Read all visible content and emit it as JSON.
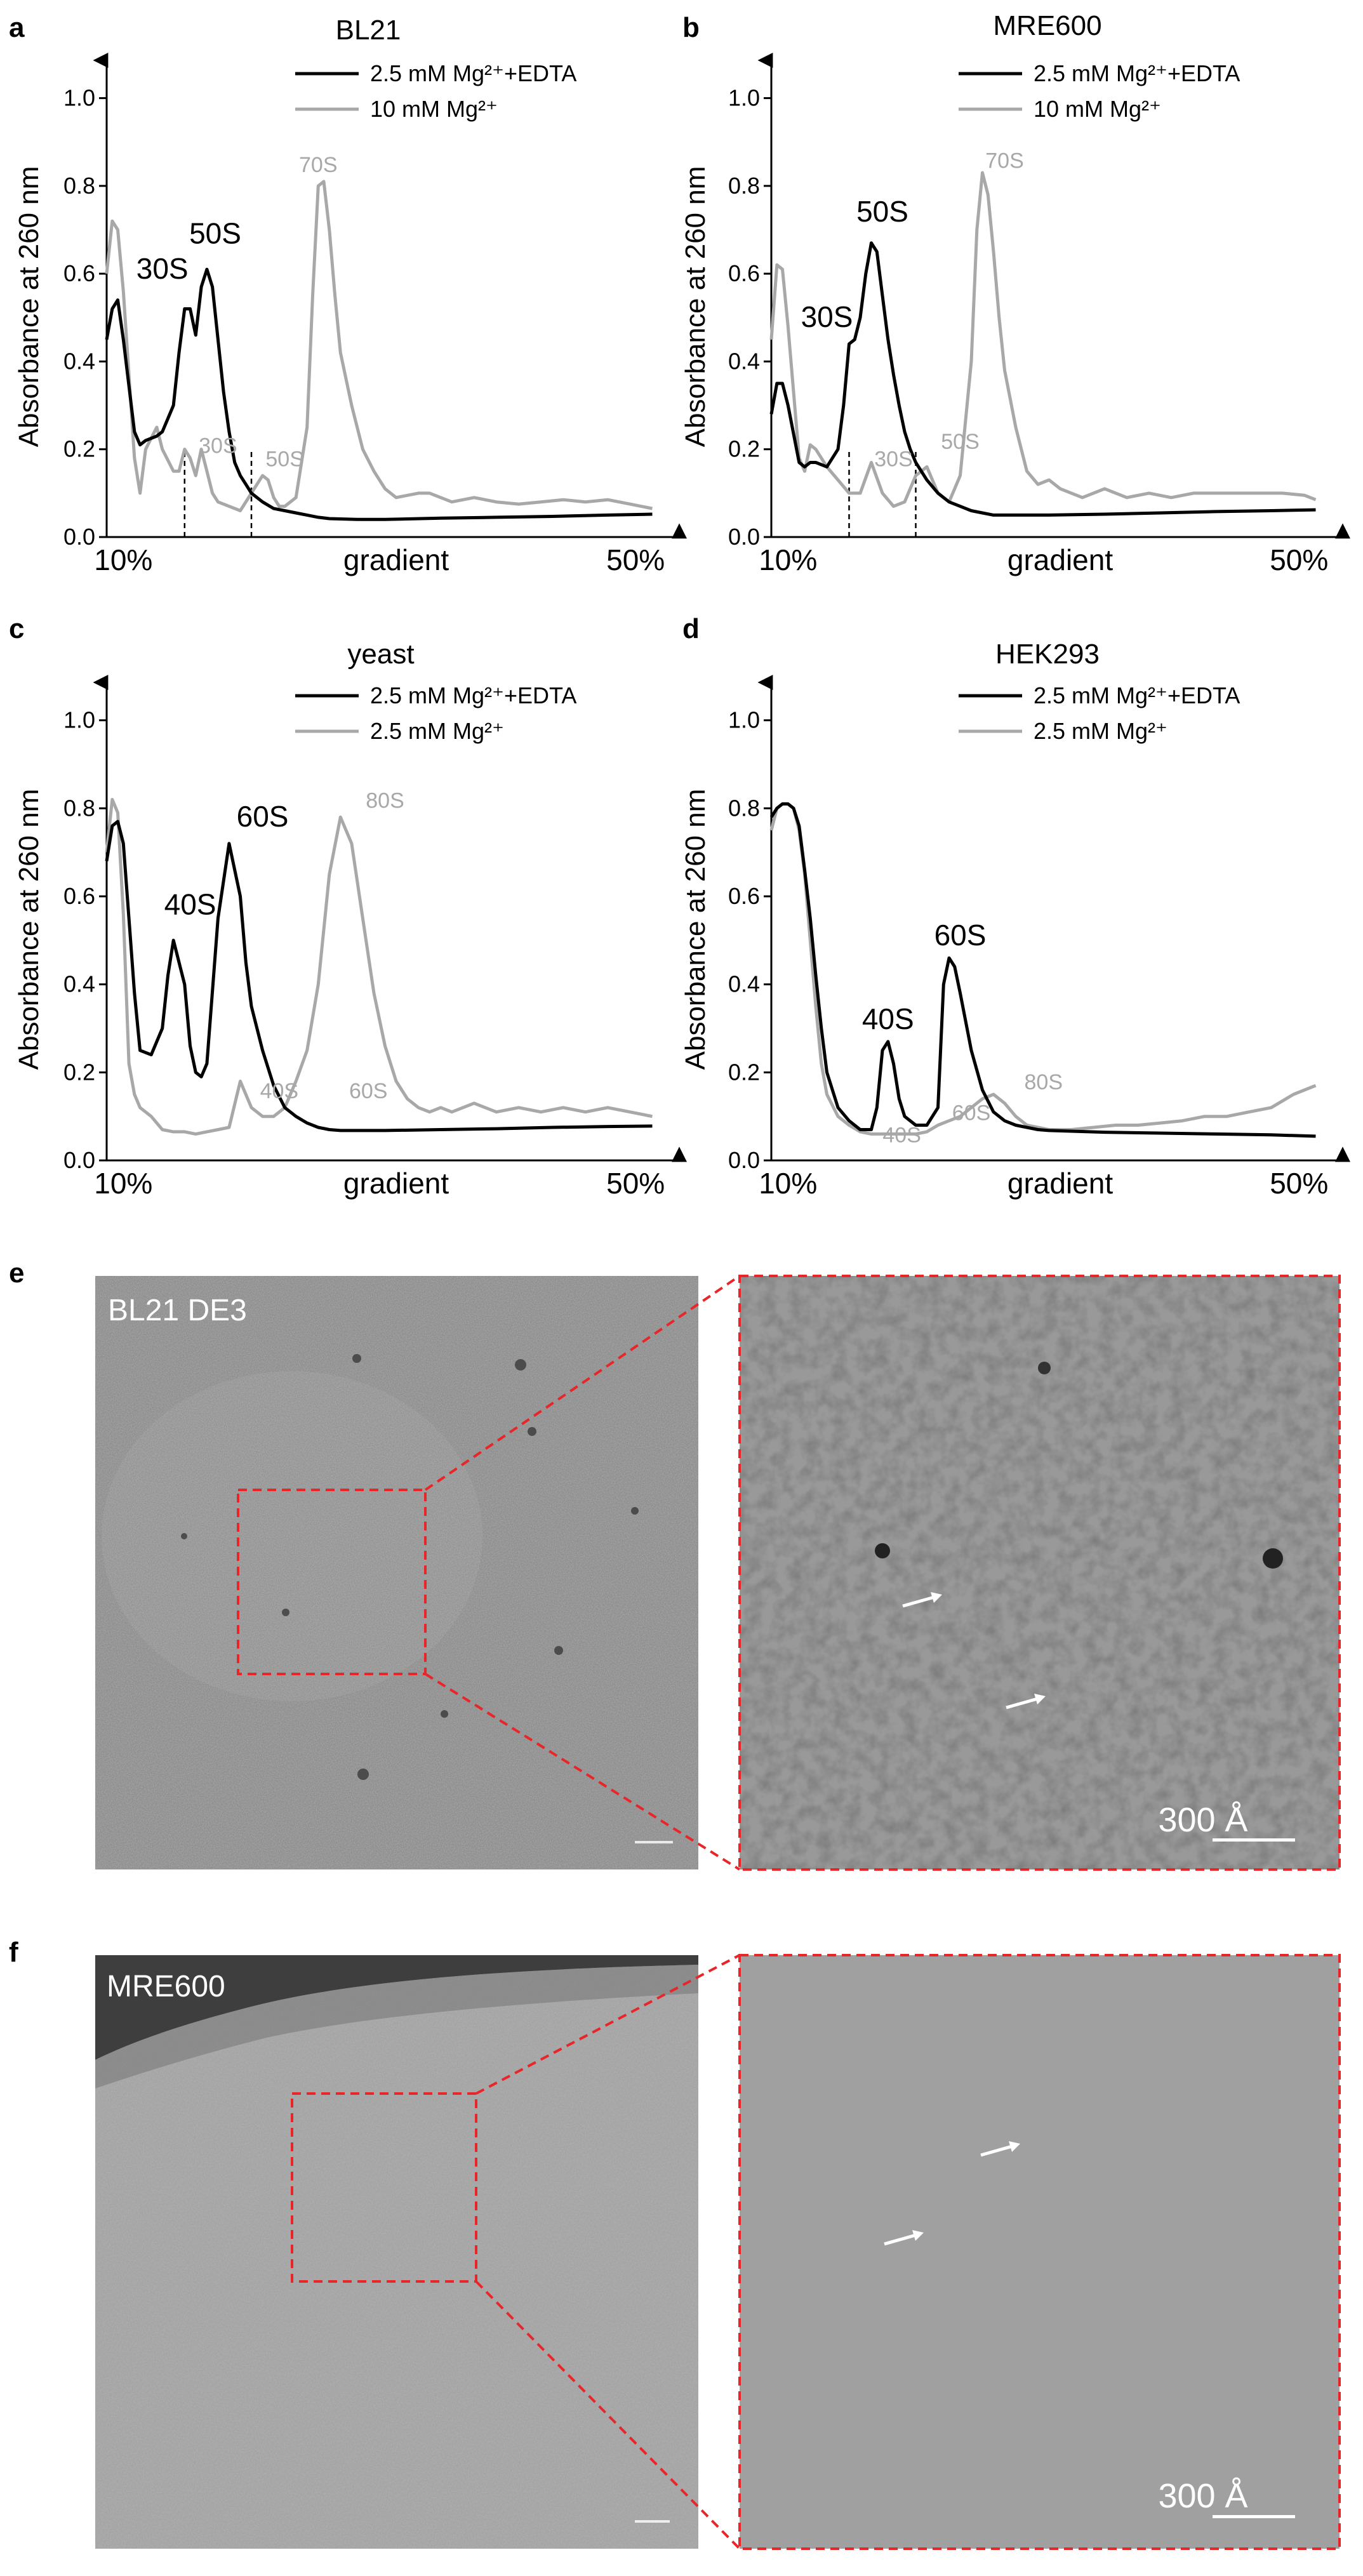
{
  "colors": {
    "series_black": "#000000",
    "series_gray": "#a8a8a8",
    "zoom_box": "#e8262a",
    "arrow": "#ffffff"
  },
  "chart_data": [
    {
      "panel": "a",
      "type": "line",
      "title": "BL21",
      "xlabel": "gradient",
      "x_ticks": [
        "10%",
        "50%"
      ],
      "ylabel": "Absorbance at 260 nm",
      "ylim": [
        0,
        1.05
      ],
      "yticks": [
        0.0,
        0.2,
        0.4,
        0.6,
        0.8,
        1.0
      ],
      "xlim": [
        0,
        100
      ],
      "legend_position": "top-right",
      "series": [
        {
          "name": "2.5 mM Mg²⁺+EDTA",
          "color": "#000000",
          "x": [
            0,
            1,
            2,
            3,
            5,
            6,
            7,
            9,
            10,
            12,
            13,
            14,
            15,
            16,
            17,
            18,
            19,
            20,
            21,
            22,
            23,
            24,
            25,
            26,
            28,
            30,
            32,
            34,
            36,
            38,
            40,
            45,
            50,
            60,
            70,
            80,
            90,
            98
          ],
          "y": [
            0.45,
            0.52,
            0.54,
            0.45,
            0.24,
            0.21,
            0.22,
            0.23,
            0.24,
            0.3,
            0.42,
            0.52,
            0.52,
            0.46,
            0.57,
            0.61,
            0.57,
            0.45,
            0.33,
            0.24,
            0.17,
            0.14,
            0.12,
            0.1,
            0.08,
            0.065,
            0.06,
            0.055,
            0.05,
            0.045,
            0.042,
            0.04,
            0.04,
            0.043,
            0.045,
            0.047,
            0.05,
            0.052
          ]
        },
        {
          "name": "10 mM Mg²⁺",
          "color": "#a8a8a8",
          "x": [
            0,
            1,
            2,
            3,
            5,
            6,
            7,
            9,
            10,
            12,
            13,
            14,
            15,
            16,
            17,
            18,
            19,
            20,
            22,
            24,
            26,
            28,
            29,
            30,
            31,
            32,
            34,
            36,
            37,
            38,
            39,
            40,
            41,
            42,
            44,
            46,
            48,
            50,
            52,
            56,
            58,
            62,
            66,
            70,
            74,
            78,
            82,
            86,
            90,
            94,
            98
          ],
          "y": [
            0.6,
            0.72,
            0.7,
            0.56,
            0.18,
            0.1,
            0.2,
            0.25,
            0.2,
            0.15,
            0.15,
            0.2,
            0.18,
            0.14,
            0.2,
            0.15,
            0.1,
            0.08,
            0.07,
            0.06,
            0.1,
            0.14,
            0.13,
            0.09,
            0.07,
            0.07,
            0.09,
            0.25,
            0.55,
            0.8,
            0.81,
            0.7,
            0.55,
            0.42,
            0.3,
            0.2,
            0.15,
            0.11,
            0.09,
            0.1,
            0.1,
            0.08,
            0.09,
            0.08,
            0.075,
            0.08,
            0.085,
            0.08,
            0.085,
            0.075,
            0.065
          ]
        }
      ],
      "peak_labels_black": [
        "30S",
        "50S"
      ],
      "peak_labels_gray": [
        "30S",
        "50S",
        "70S"
      ],
      "fraction_markers": "dashed"
    },
    {
      "panel": "b",
      "type": "line",
      "title": "MRE600",
      "xlabel": "gradient",
      "x_ticks": [
        "10%",
        "50%"
      ],
      "ylabel": "Absorbance at 260 nm",
      "ylim": [
        0,
        1.05
      ],
      "yticks": [
        0.0,
        0.2,
        0.4,
        0.6,
        0.8,
        1.0
      ],
      "xlim": [
        0,
        100
      ],
      "legend_position": "top-right",
      "series": [
        {
          "name": "2.5 mM Mg²⁺+EDTA",
          "color": "#000000",
          "x": [
            0,
            1,
            2,
            3,
            5,
            6,
            7,
            8,
            10,
            12,
            13,
            14,
            15,
            16,
            17,
            18,
            19,
            20,
            21,
            22,
            23,
            24,
            25,
            26,
            28,
            30,
            32,
            34,
            36,
            38,
            40,
            45,
            50,
            60,
            70,
            80,
            90,
            98
          ],
          "y": [
            0.28,
            0.35,
            0.35,
            0.3,
            0.17,
            0.16,
            0.17,
            0.17,
            0.16,
            0.2,
            0.3,
            0.44,
            0.45,
            0.5,
            0.6,
            0.67,
            0.65,
            0.55,
            0.45,
            0.37,
            0.3,
            0.24,
            0.2,
            0.17,
            0.13,
            0.1,
            0.08,
            0.07,
            0.06,
            0.055,
            0.05,
            0.05,
            0.05,
            0.052,
            0.055,
            0.058,
            0.06,
            0.062
          ]
        },
        {
          "name": "10 mM Mg²⁺",
          "color": "#a8a8a8",
          "x": [
            0,
            1,
            2,
            3,
            5,
            6,
            7,
            8,
            10,
            12,
            14,
            16,
            18,
            20,
            22,
            24,
            26,
            28,
            30,
            32,
            34,
            36,
            37,
            38,
            39,
            40,
            41,
            42,
            44,
            46,
            48,
            50,
            52,
            56,
            60,
            64,
            68,
            72,
            76,
            80,
            84,
            88,
            92,
            96,
            98
          ],
          "y": [
            0.45,
            0.62,
            0.61,
            0.48,
            0.18,
            0.15,
            0.21,
            0.2,
            0.16,
            0.13,
            0.1,
            0.1,
            0.17,
            0.1,
            0.07,
            0.08,
            0.14,
            0.16,
            0.1,
            0.08,
            0.14,
            0.4,
            0.7,
            0.83,
            0.78,
            0.65,
            0.5,
            0.38,
            0.25,
            0.15,
            0.12,
            0.13,
            0.11,
            0.09,
            0.11,
            0.09,
            0.1,
            0.09,
            0.1,
            0.1,
            0.1,
            0.1,
            0.1,
            0.095,
            0.085
          ]
        }
      ],
      "peak_labels_black": [
        "30S",
        "50S"
      ],
      "peak_labels_gray": [
        "30S",
        "50S",
        "70S"
      ],
      "fraction_markers": "dashed"
    },
    {
      "panel": "c",
      "type": "line",
      "title": "yeast",
      "xlabel": "gradient",
      "x_ticks": [
        "10%",
        "50%"
      ],
      "ylabel": "Absorbance at 260 nm",
      "ylim": [
        0,
        1.05
      ],
      "yticks": [
        0.0,
        0.2,
        0.4,
        0.6,
        0.8,
        1.0
      ],
      "xlim": [
        0,
        100
      ],
      "legend_position": "top-right",
      "series": [
        {
          "name": "2.5 mM Mg²⁺+EDTA",
          "color": "#000000",
          "x": [
            0,
            1,
            2,
            3,
            4,
            5,
            6,
            8,
            10,
            11,
            12,
            14,
            15,
            16,
            17,
            18,
            20,
            22,
            24,
            25,
            26,
            28,
            30,
            32,
            34,
            36,
            38,
            40,
            42,
            45,
            50,
            60,
            70,
            80,
            90,
            98
          ],
          "y": [
            0.68,
            0.76,
            0.77,
            0.72,
            0.55,
            0.38,
            0.25,
            0.24,
            0.3,
            0.42,
            0.5,
            0.4,
            0.26,
            0.2,
            0.19,
            0.22,
            0.55,
            0.72,
            0.6,
            0.45,
            0.35,
            0.25,
            0.17,
            0.12,
            0.1,
            0.085,
            0.075,
            0.07,
            0.068,
            0.068,
            0.068,
            0.07,
            0.072,
            0.075,
            0.077,
            0.078
          ]
        },
        {
          "name": "2.5 mM Mg²⁺",
          "color": "#a8a8a8",
          "x": [
            0,
            1,
            2,
            3,
            4,
            5,
            6,
            8,
            10,
            12,
            14,
            16,
            18,
            20,
            22,
            24,
            26,
            28,
            30,
            32,
            34,
            36,
            38,
            40,
            42,
            44,
            46,
            48,
            50,
            52,
            54,
            56,
            58,
            60,
            62,
            66,
            70,
            74,
            78,
            82,
            86,
            90,
            94,
            98
          ],
          "y": [
            0.7,
            0.82,
            0.79,
            0.56,
            0.22,
            0.15,
            0.12,
            0.1,
            0.07,
            0.065,
            0.065,
            0.06,
            0.065,
            0.07,
            0.075,
            0.18,
            0.12,
            0.1,
            0.1,
            0.12,
            0.18,
            0.25,
            0.4,
            0.65,
            0.78,
            0.72,
            0.55,
            0.38,
            0.26,
            0.18,
            0.14,
            0.12,
            0.11,
            0.12,
            0.11,
            0.13,
            0.11,
            0.12,
            0.11,
            0.12,
            0.11,
            0.12,
            0.11,
            0.1
          ]
        }
      ],
      "peak_labels_black": [
        "40S",
        "60S"
      ],
      "peak_labels_gray": [
        "40S",
        "60S",
        "80S"
      ]
    },
    {
      "panel": "d",
      "type": "line",
      "title": "HEK293",
      "xlabel": "gradient",
      "x_ticks": [
        "10%",
        "50%"
      ],
      "ylabel": "Absorbance at 260 nm",
      "ylim": [
        0,
        1.05
      ],
      "yticks": [
        0.0,
        0.2,
        0.4,
        0.6,
        0.8,
        1.0
      ],
      "xlim": [
        0,
        100
      ],
      "legend_position": "top-right",
      "series": [
        {
          "name": "2.5 mM Mg²⁺+EDTA",
          "color": "#000000",
          "x": [
            0,
            1,
            2,
            3,
            4,
            5,
            6,
            7,
            8,
            9,
            10,
            12,
            14,
            16,
            18,
            19,
            20,
            21,
            22,
            23,
            24,
            26,
            28,
            30,
            31,
            32,
            33,
            34,
            36,
            38,
            40,
            42,
            44,
            46,
            48,
            50,
            55,
            60,
            70,
            80,
            90,
            98
          ],
          "y": [
            0.78,
            0.8,
            0.81,
            0.81,
            0.8,
            0.76,
            0.66,
            0.55,
            0.42,
            0.3,
            0.2,
            0.12,
            0.09,
            0.07,
            0.07,
            0.12,
            0.25,
            0.27,
            0.22,
            0.14,
            0.1,
            0.08,
            0.08,
            0.12,
            0.4,
            0.46,
            0.44,
            0.38,
            0.25,
            0.16,
            0.11,
            0.09,
            0.08,
            0.075,
            0.07,
            0.068,
            0.066,
            0.064,
            0.062,
            0.06,
            0.058,
            0.055
          ]
        },
        {
          "name": "2.5 mM Mg²⁺",
          "color": "#a8a8a8",
          "x": [
            0,
            1,
            2,
            3,
            4,
            5,
            6,
            7,
            8,
            9,
            10,
            12,
            14,
            16,
            18,
            20,
            22,
            24,
            26,
            28,
            30,
            32,
            34,
            36,
            38,
            40,
            42,
            44,
            46,
            48,
            50,
            54,
            58,
            62,
            66,
            70,
            74,
            78,
            82,
            86,
            90,
            94,
            98
          ],
          "y": [
            0.75,
            0.8,
            0.81,
            0.81,
            0.8,
            0.75,
            0.65,
            0.5,
            0.35,
            0.22,
            0.15,
            0.1,
            0.08,
            0.065,
            0.06,
            0.06,
            0.06,
            0.06,
            0.06,
            0.065,
            0.08,
            0.09,
            0.1,
            0.12,
            0.14,
            0.15,
            0.13,
            0.1,
            0.08,
            0.075,
            0.07,
            0.07,
            0.075,
            0.08,
            0.08,
            0.085,
            0.09,
            0.1,
            0.1,
            0.11,
            0.12,
            0.15,
            0.17
          ]
        }
      ],
      "peak_labels_black": [
        "40S",
        "60S"
      ],
      "peak_labels_gray": [
        "40S",
        "60S",
        "80S"
      ]
    }
  ],
  "micrographs": {
    "e": {
      "panel": "e",
      "sample": "BL21 DE3",
      "scale_bar": "300 Å",
      "arrows": 2
    },
    "f": {
      "panel": "f",
      "sample": "MRE600",
      "scale_bar": "300 Å",
      "arrows": 2
    }
  }
}
